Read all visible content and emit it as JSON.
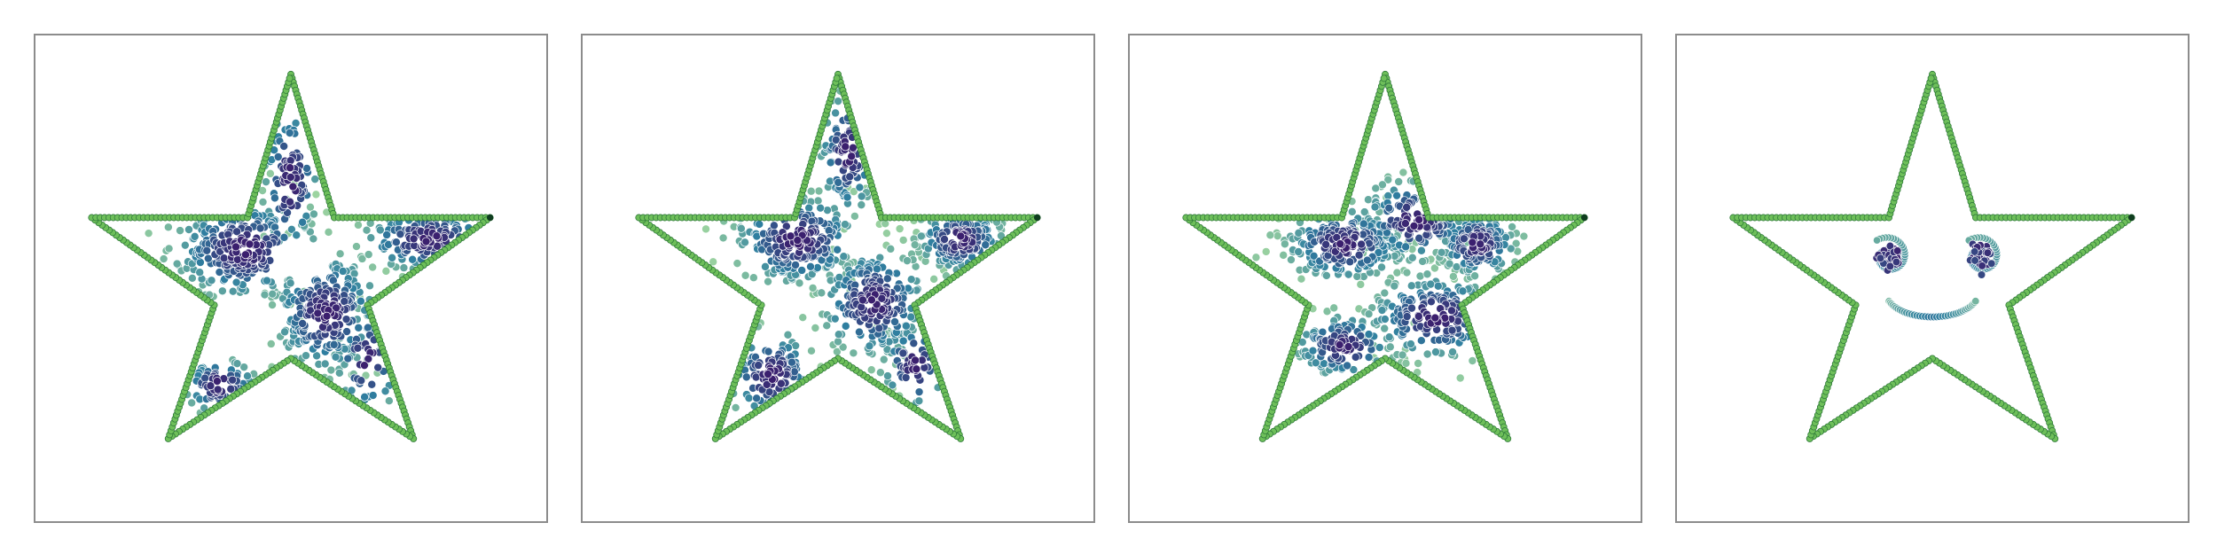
{
  "figure": {
    "panel_count": 4,
    "colors": {
      "boundary_fill": "#6ebf5a",
      "boundary_edge": "#2f7a3a",
      "point_edge": "#ffffff",
      "panel_border": "#8c8c8c",
      "colormap_low": "#a3d9a0",
      "colormap_mid": "#2f7fa0",
      "colormap_high": "#3b1f6e"
    }
  },
  "chart_data": [
    {
      "type": "scatter",
      "panel": 1,
      "grid": false,
      "legend": "none",
      "xlim": [
        0,
        1
      ],
      "ylim": [
        0,
        1
      ],
      "boundary": {
        "shape": "five-point star",
        "vertices": [
          [
            0.5,
            0.92
          ],
          [
            0.585,
            0.625
          ],
          [
            0.89,
            0.625
          ],
          [
            0.65,
            0.445
          ],
          [
            0.74,
            0.17
          ],
          [
            0.5,
            0.335
          ],
          [
            0.26,
            0.17
          ],
          [
            0.35,
            0.445
          ],
          [
            0.11,
            0.625
          ],
          [
            0.415,
            0.625
          ]
        ]
      },
      "clusters": [
        {
          "center": [
            0.41,
            0.56
          ],
          "spread": [
            0.075,
            0.055
          ],
          "count": 260
        },
        {
          "center": [
            0.57,
            0.43
          ],
          "spread": [
            0.055,
            0.065
          ],
          "count": 240
        },
        {
          "center": [
            0.5,
            0.7
          ],
          "spread": [
            0.03,
            0.09
          ],
          "count": 80
        },
        {
          "center": [
            0.77,
            0.58
          ],
          "spread": [
            0.07,
            0.035
          ],
          "count": 120
        },
        {
          "center": [
            0.36,
            0.28
          ],
          "spread": [
            0.04,
            0.03
          ],
          "count": 70
        },
        {
          "center": [
            0.65,
            0.33
          ],
          "spread": [
            0.035,
            0.06
          ],
          "count": 50
        }
      ],
      "holes": [
        [
          0.52,
          0.54,
          0.06,
          0.045
        ],
        [
          0.4,
          0.42,
          0.05,
          0.05
        ]
      ]
    },
    {
      "type": "scatter",
      "panel": 2,
      "grid": false,
      "legend": "none",
      "xlim": [
        0,
        1
      ],
      "ylim": [
        0,
        1
      ],
      "boundary": {
        "shape": "five-point star",
        "vertices": [
          [
            0.5,
            0.92
          ],
          [
            0.585,
            0.625
          ],
          [
            0.89,
            0.625
          ],
          [
            0.65,
            0.445
          ],
          [
            0.74,
            0.17
          ],
          [
            0.5,
            0.335
          ],
          [
            0.26,
            0.17
          ],
          [
            0.35,
            0.445
          ],
          [
            0.11,
            0.625
          ],
          [
            0.415,
            0.625
          ]
        ]
      },
      "clusters": [
        {
          "center": [
            0.42,
            0.58
          ],
          "spread": [
            0.065,
            0.05
          ],
          "count": 230
        },
        {
          "center": [
            0.57,
            0.45
          ],
          "spread": [
            0.055,
            0.06
          ],
          "count": 230
        },
        {
          "center": [
            0.74,
            0.58
          ],
          "spread": [
            0.045,
            0.035
          ],
          "count": 150
        },
        {
          "center": [
            0.52,
            0.76
          ],
          "spread": [
            0.03,
            0.07
          ],
          "count": 90
        },
        {
          "center": [
            0.37,
            0.3
          ],
          "spread": [
            0.045,
            0.05
          ],
          "count": 100
        },
        {
          "center": [
            0.65,
            0.32
          ],
          "spread": [
            0.035,
            0.05
          ],
          "count": 60
        }
      ],
      "holes": [
        [
          0.55,
          0.58,
          0.045,
          0.035
        ],
        [
          0.4,
          0.45,
          0.045,
          0.04
        ]
      ]
    },
    {
      "type": "scatter",
      "panel": 3,
      "grid": false,
      "legend": "none",
      "xlim": [
        0,
        1
      ],
      "ylim": [
        0,
        1
      ],
      "boundary": {
        "shape": "five-point star",
        "vertices": [
          [
            0.5,
            0.92
          ],
          [
            0.585,
            0.625
          ],
          [
            0.89,
            0.625
          ],
          [
            0.65,
            0.445
          ],
          [
            0.74,
            0.17
          ],
          [
            0.5,
            0.335
          ],
          [
            0.26,
            0.17
          ],
          [
            0.35,
            0.445
          ],
          [
            0.11,
            0.625
          ],
          [
            0.415,
            0.625
          ]
        ]
      },
      "clusters": [
        {
          "center": [
            0.42,
            0.57
          ],
          "spread": [
            0.06,
            0.04
          ],
          "count": 220
        },
        {
          "center": [
            0.56,
            0.62
          ],
          "spread": [
            0.06,
            0.045
          ],
          "count": 160
        },
        {
          "center": [
            0.68,
            0.57
          ],
          "spread": [
            0.04,
            0.035
          ],
          "count": 170
        },
        {
          "center": [
            0.6,
            0.42
          ],
          "spread": [
            0.07,
            0.045
          ],
          "count": 200
        },
        {
          "center": [
            0.42,
            0.36
          ],
          "spread": [
            0.05,
            0.035
          ],
          "count": 120
        }
      ],
      "holes": []
    },
    {
      "type": "scatter",
      "panel": 4,
      "grid": false,
      "legend": "none",
      "xlim": [
        0,
        1
      ],
      "ylim": [
        0,
        1
      ],
      "boundary": {
        "shape": "five-point star",
        "vertices": [
          [
            0.5,
            0.92
          ],
          [
            0.585,
            0.625
          ],
          [
            0.89,
            0.625
          ],
          [
            0.65,
            0.445
          ],
          [
            0.74,
            0.17
          ],
          [
            0.5,
            0.335
          ],
          [
            0.26,
            0.17
          ],
          [
            0.35,
            0.445
          ],
          [
            0.11,
            0.625
          ],
          [
            0.415,
            0.625
          ]
        ]
      },
      "face": {
        "left_eye": {
          "center": [
            0.415,
            0.545
          ],
          "spiral_radius": 0.04,
          "core_count": 40
        },
        "right_eye": {
          "center": [
            0.595,
            0.545
          ],
          "spiral_radius": 0.04,
          "core_count": 40
        },
        "smile": {
          "center": [
            0.5,
            0.43
          ],
          "radius": 0.09,
          "start_deg": 200,
          "end_deg": 340,
          "count": 40
        }
      }
    }
  ]
}
